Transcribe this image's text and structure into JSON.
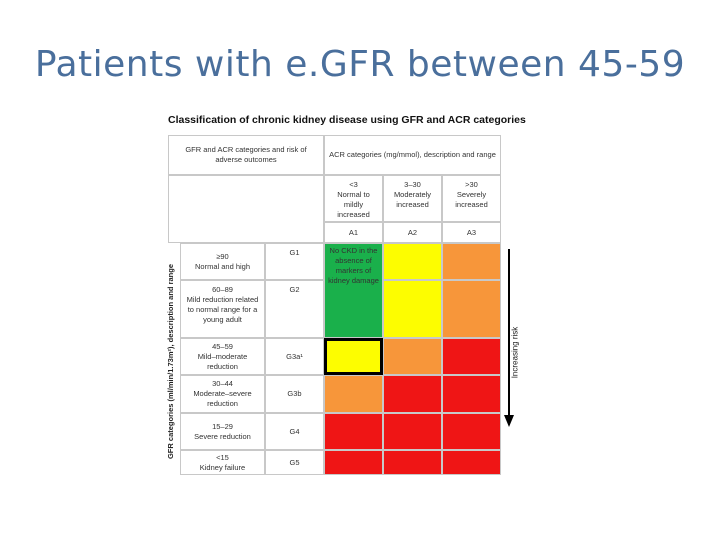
{
  "slide": {
    "title": "Patients with e.GFR between 45-59"
  },
  "figure": {
    "title": "Classification of chronic kidney disease using GFR and ACR categories",
    "header_left": "GFR and ACR categories and risk of adverse outcomes",
    "header_right": "ACR categories (mg/mmol), description and range",
    "acr_columns": [
      {
        "range": "<3",
        "description": "Normal to mildly increased",
        "code": "A1"
      },
      {
        "range": "3–30",
        "description": "Moderately increased",
        "code": "A2"
      },
      {
        "range": ">30",
        "description": "Severely increased",
        "code": "A3"
      }
    ],
    "gfr_axis_label": "GFR categories (ml/min/1.73m²), description and range",
    "risk_label": "Increasing risk",
    "no_ckd_text": "No CKD in the absence of markers of kidney damage",
    "gfr_rows": [
      {
        "range": "≥90",
        "description": "Normal and high",
        "code": "G1",
        "colors": [
          "green",
          "yellow",
          "orange"
        ]
      },
      {
        "range": "60–89",
        "description": "Mild reduction related to normal range for a young adult",
        "code": "G2",
        "colors": [
          "green",
          "yellow",
          "orange"
        ]
      },
      {
        "range": "45–59",
        "description": "Mild–moderate reduction",
        "code": "G3a¹",
        "colors": [
          "yellow",
          "orange",
          "red"
        ],
        "highlight_column": 0
      },
      {
        "range": "30–44",
        "description": "Moderate–severe reduction",
        "code": "G3b",
        "colors": [
          "orange",
          "red",
          "red"
        ]
      },
      {
        "range": "15–29",
        "description": "Severe reduction",
        "code": "G4",
        "colors": [
          "red",
          "red",
          "red"
        ]
      },
      {
        "range": "<15",
        "description": "Kidney failure",
        "code": "G5",
        "colors": [
          "red",
          "red",
          "red"
        ]
      }
    ],
    "colors": {
      "green": "#1ab04b",
      "yellow": "#fdfd00",
      "orange": "#f7963a",
      "red": "#ef1515"
    }
  }
}
